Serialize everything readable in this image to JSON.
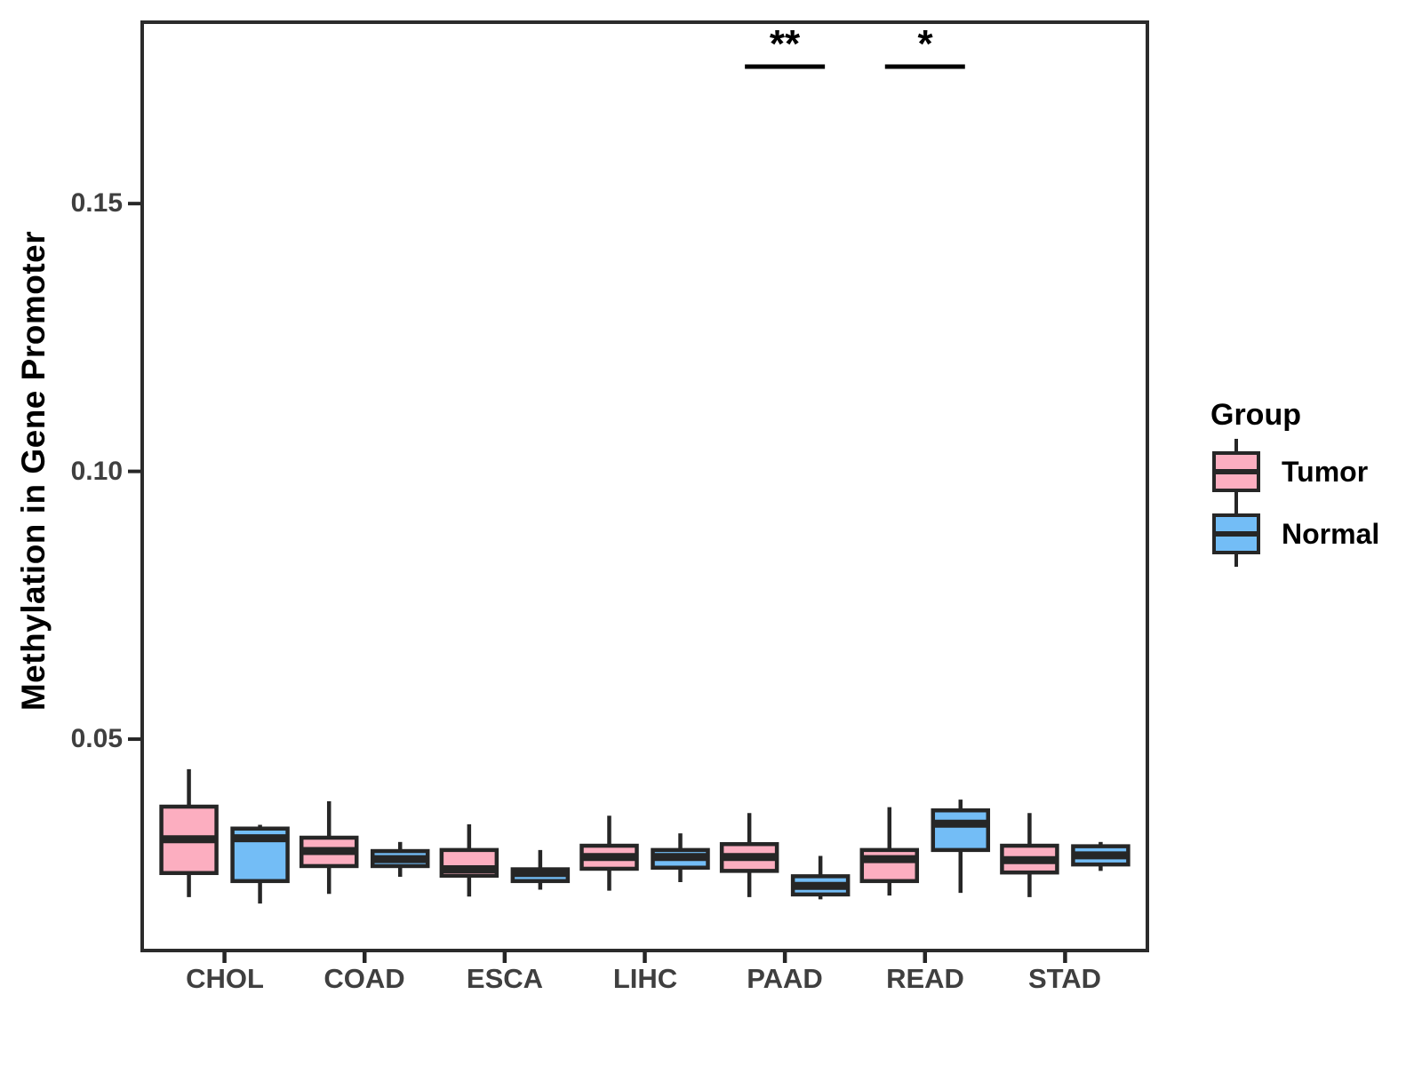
{
  "chart_data": {
    "type": "boxplot",
    "title": "",
    "xlabel": "",
    "ylabel": "Methylation in Gene Promoter",
    "categories": [
      "CHOL",
      "COAD",
      "ESCA",
      "LIHC",
      "PAAD",
      "READ",
      "STAD"
    ],
    "ylim": [
      0.0102,
      0.1842
    ],
    "yticks": [
      {
        "value": 0.05,
        "label": "0.05"
      },
      {
        "value": 0.1,
        "label": "0.10"
      },
      {
        "value": 0.15,
        "label": "0.15"
      }
    ],
    "grid": false,
    "legend": {
      "title": "Group",
      "position": "right",
      "entries": [
        {
          "name": "Tumor",
          "color": "#FCAEC0"
        },
        {
          "name": "Normal",
          "color": "#73BDF6"
        }
      ]
    },
    "series": [
      {
        "name": "Tumor",
        "color": "#FCAEC0",
        "boxes": [
          {
            "category": "CHOL",
            "whisker_low": 0.0205,
            "q1": 0.025,
            "median": 0.0313,
            "q3": 0.0374,
            "whisker_high": 0.0444
          },
          {
            "category": "COAD",
            "whisker_low": 0.0211,
            "q1": 0.0263,
            "median": 0.0291,
            "q3": 0.0316,
            "whisker_high": 0.0384
          },
          {
            "category": "ESCA",
            "whisker_low": 0.0206,
            "q1": 0.0245,
            "median": 0.0257,
            "q3": 0.0293,
            "whisker_high": 0.0341
          },
          {
            "category": "LIHC",
            "whisker_low": 0.0217,
            "q1": 0.0258,
            "median": 0.028,
            "q3": 0.0301,
            "whisker_high": 0.0357
          },
          {
            "category": "PAAD",
            "whisker_low": 0.0205,
            "q1": 0.0254,
            "median": 0.028,
            "q3": 0.0304,
            "whisker_high": 0.0362
          },
          {
            "category": "READ",
            "whisker_low": 0.0208,
            "q1": 0.0235,
            "median": 0.0276,
            "q3": 0.0293,
            "whisker_high": 0.0373
          },
          {
            "category": "STAD",
            "whisker_low": 0.0205,
            "q1": 0.0251,
            "median": 0.0274,
            "q3": 0.0301,
            "whisker_high": 0.0362
          }
        ]
      },
      {
        "name": "Normal",
        "color": "#73BDF6",
        "boxes": [
          {
            "category": "CHOL",
            "whisker_low": 0.0193,
            "q1": 0.0235,
            "median": 0.0315,
            "q3": 0.0333,
            "whisker_high": 0.034
          },
          {
            "category": "COAD",
            "whisker_low": 0.0243,
            "q1": 0.0263,
            "median": 0.0276,
            "q3": 0.0291,
            "whisker_high": 0.0308
          },
          {
            "category": "ESCA",
            "whisker_low": 0.0219,
            "q1": 0.0235,
            "median": 0.025,
            "q3": 0.0257,
            "whisker_high": 0.0293
          },
          {
            "category": "LIHC",
            "whisker_low": 0.0233,
            "q1": 0.026,
            "median": 0.028,
            "q3": 0.0293,
            "whisker_high": 0.0324
          },
          {
            "category": "PAAD",
            "whisker_low": 0.0201,
            "q1": 0.021,
            "median": 0.0226,
            "q3": 0.0244,
            "whisker_high": 0.0282
          },
          {
            "category": "READ",
            "whisker_low": 0.0213,
            "q1": 0.0293,
            "median": 0.0342,
            "q3": 0.0367,
            "whisker_high": 0.0387
          },
          {
            "category": "STAD",
            "whisker_low": 0.0254,
            "q1": 0.0266,
            "median": 0.0283,
            "q3": 0.03,
            "whisker_high": 0.0308
          }
        ]
      }
    ],
    "annotations": [
      {
        "category": "PAAD",
        "label": "**"
      },
      {
        "category": "READ",
        "label": "*"
      }
    ]
  },
  "style": {
    "stroke_color": "#262626",
    "panel_border_color": "#2b2b2b",
    "tick_label_color": "#3f3f3f",
    "annotation_color": "#000000"
  }
}
